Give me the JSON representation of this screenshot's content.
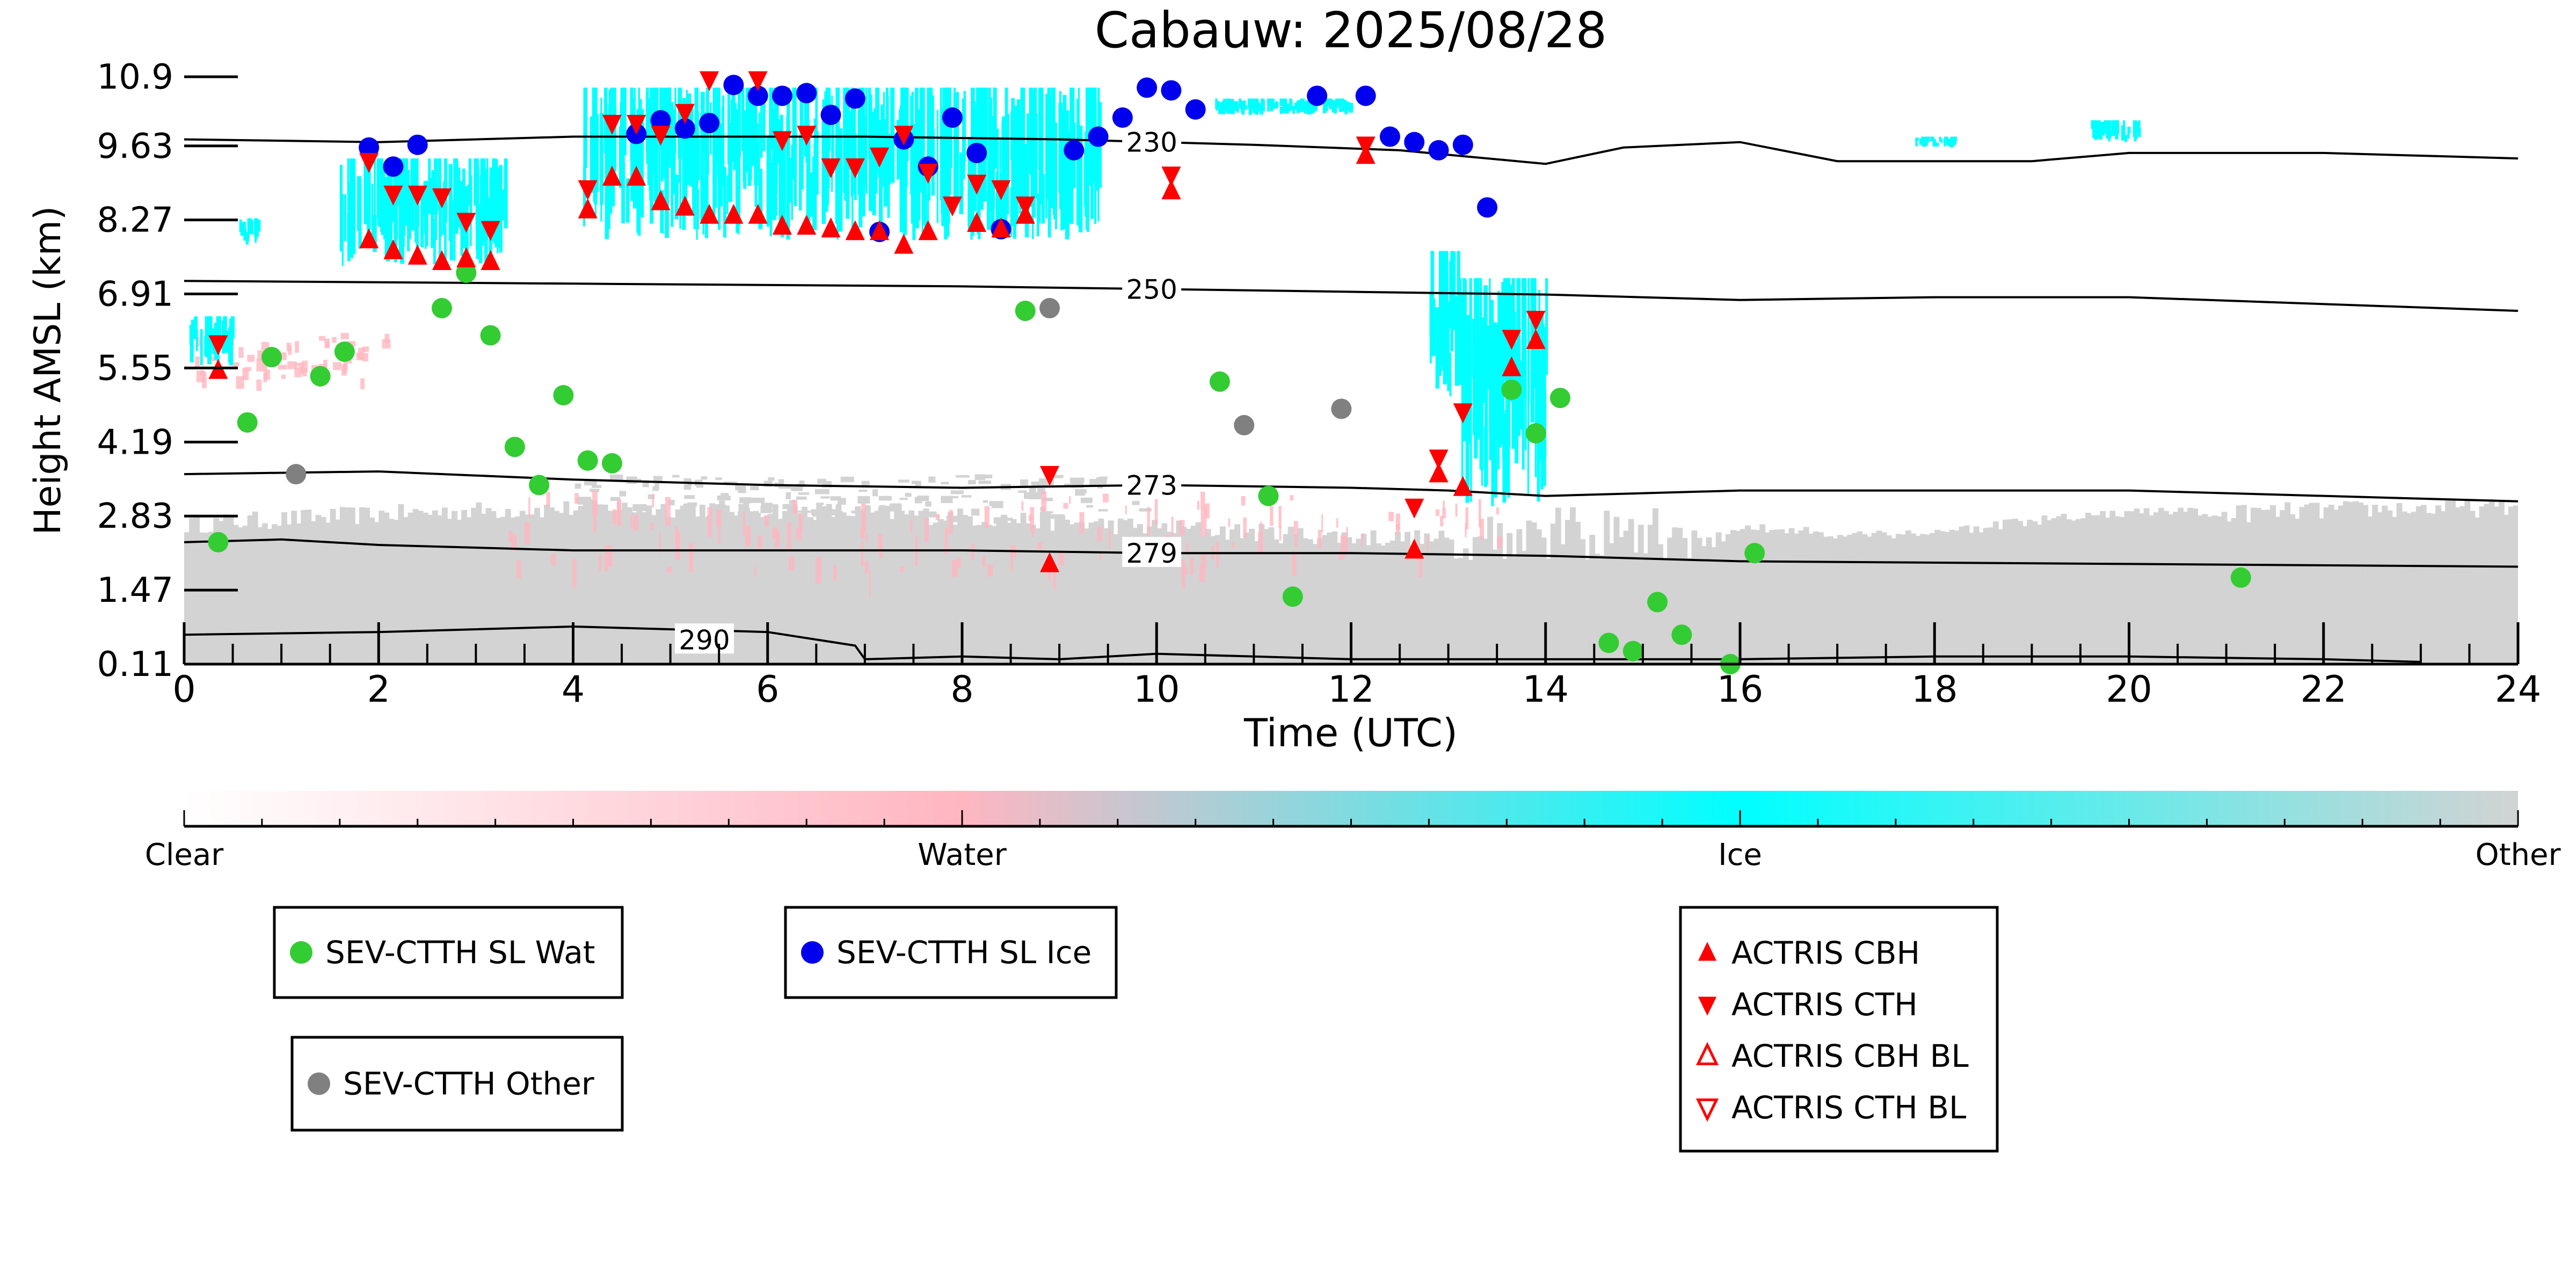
{
  "chart_data": {
    "type": "scatter",
    "title": "Cabauw: 2025/08/28",
    "xlabel": "Time (UTC)",
    "ylabel": "Height AMSL (km)",
    "xlim": [
      0,
      24
    ],
    "ylim": [
      0.11,
      10.9
    ],
    "x_ticks": [
      0,
      2,
      4,
      6,
      8,
      10,
      12,
      14,
      16,
      18,
      20,
      22,
      24
    ],
    "y_ticks": [
      "0.11",
      "1.47",
      "2.83",
      "4.19",
      "5.55",
      "6.91",
      "8.27",
      "9.63",
      "10.9"
    ],
    "background": "cloud classification image (Clear / Water / Ice / Other)",
    "colorbar": {
      "labels": [
        "Clear",
        "Water",
        "Ice",
        "Other"
      ],
      "colors": [
        "#ffffff",
        "#ffb6c1",
        "#00ffff",
        "#d3d3d3"
      ]
    },
    "contours": [
      {
        "label": "230",
        "points": [
          [
            0,
            9.75
          ],
          [
            2,
            9.7
          ],
          [
            4,
            9.8
          ],
          [
            7,
            9.8
          ],
          [
            9,
            9.75
          ],
          [
            11,
            9.65
          ],
          [
            12.5,
            9.55
          ],
          [
            14,
            9.3
          ],
          [
            14.8,
            9.6
          ],
          [
            16,
            9.7
          ],
          [
            17,
            9.35
          ],
          [
            19,
            9.35
          ],
          [
            20,
            9.5
          ],
          [
            22,
            9.5
          ],
          [
            24,
            9.4
          ]
        ]
      },
      {
        "label": "250",
        "points": [
          [
            0,
            7.15
          ],
          [
            4,
            7.1
          ],
          [
            8,
            7.05
          ],
          [
            10,
            7.0
          ],
          [
            12,
            6.95
          ],
          [
            14,
            6.9
          ],
          [
            16,
            6.8
          ],
          [
            18,
            6.85
          ],
          [
            20,
            6.85
          ],
          [
            24,
            6.6
          ]
        ]
      },
      {
        "label": "273",
        "points": [
          [
            0,
            3.6
          ],
          [
            2,
            3.65
          ],
          [
            4,
            3.5
          ],
          [
            6,
            3.4
          ],
          [
            8,
            3.35
          ],
          [
            10,
            3.4
          ],
          [
            12,
            3.35
          ],
          [
            13,
            3.3
          ],
          [
            14,
            3.2
          ],
          [
            16,
            3.3
          ],
          [
            20,
            3.3
          ],
          [
            24,
            3.1
          ]
        ]
      },
      {
        "label": "279",
        "points": [
          [
            0,
            2.35
          ],
          [
            1,
            2.4
          ],
          [
            2,
            2.3
          ],
          [
            4,
            2.2
          ],
          [
            6,
            2.2
          ],
          [
            8,
            2.2
          ],
          [
            10,
            2.15
          ],
          [
            12,
            2.15
          ],
          [
            14,
            2.1
          ],
          [
            16,
            2.0
          ],
          [
            20,
            1.95
          ],
          [
            24,
            1.9
          ]
        ]
      },
      {
        "label": "290",
        "points": [
          [
            0,
            0.65
          ],
          [
            2,
            0.7
          ],
          [
            4,
            0.8
          ],
          [
            6,
            0.7
          ],
          [
            6.9,
            0.45
          ],
          [
            7,
            0.2
          ],
          [
            8,
            0.25
          ],
          [
            9,
            0.2
          ],
          [
            10,
            0.3
          ],
          [
            11,
            0.25
          ],
          [
            12,
            0.2
          ],
          [
            14,
            0.2
          ],
          [
            16,
            0.2
          ],
          [
            18,
            0.25
          ],
          [
            20,
            0.25
          ],
          [
            22,
            0.2
          ],
          [
            23,
            0.15
          ]
        ]
      }
    ],
    "series": [
      {
        "name": "SEV-CTTH SL Wat",
        "color": "#33cc33",
        "marker": "circle",
        "points": [
          [
            0.35,
            2.35
          ],
          [
            0.65,
            4.55
          ],
          [
            0.9,
            5.75
          ],
          [
            1.4,
            5.4
          ],
          [
            1.65,
            5.85
          ],
          [
            2.65,
            6.65
          ],
          [
            2.9,
            7.3
          ],
          [
            3.15,
            6.15
          ],
          [
            3.4,
            4.1
          ],
          [
            3.65,
            3.4
          ],
          [
            3.9,
            5.05
          ],
          [
            4.15,
            3.85
          ],
          [
            4.4,
            3.8
          ],
          [
            8.65,
            6.6
          ],
          [
            10.65,
            5.3
          ],
          [
            11.15,
            3.2
          ],
          [
            11.4,
            1.35
          ],
          [
            13.65,
            5.15
          ],
          [
            13.9,
            4.35
          ],
          [
            14.15,
            5.0
          ],
          [
            14.65,
            0.5
          ],
          [
            14.9,
            0.35
          ],
          [
            15.15,
            1.25
          ],
          [
            15.4,
            0.65
          ],
          [
            15.9,
            0.11
          ],
          [
            16.15,
            2.15
          ],
          [
            21.15,
            1.7
          ]
        ]
      },
      {
        "name": "SEV-CTTH SL Ice",
        "color": "#0000ee",
        "marker": "circle",
        "points": [
          [
            1.9,
            9.6
          ],
          [
            2.15,
            9.25
          ],
          [
            2.4,
            9.65
          ],
          [
            4.65,
            9.85
          ],
          [
            4.9,
            10.1
          ],
          [
            5.15,
            9.95
          ],
          [
            5.4,
            10.05
          ],
          [
            5.65,
            10.75
          ],
          [
            5.9,
            10.55
          ],
          [
            6.15,
            10.55
          ],
          [
            6.4,
            10.6
          ],
          [
            6.65,
            10.2
          ],
          [
            6.9,
            10.5
          ],
          [
            7.15,
            8.05
          ],
          [
            7.4,
            9.75
          ],
          [
            7.65,
            9.25
          ],
          [
            7.9,
            10.15
          ],
          [
            8.15,
            9.5
          ],
          [
            8.4,
            8.1
          ],
          [
            9.15,
            9.55
          ],
          [
            9.4,
            9.8
          ],
          [
            9.65,
            10.15
          ],
          [
            9.9,
            10.7
          ],
          [
            10.15,
            10.65
          ],
          [
            10.4,
            10.3
          ],
          [
            11.65,
            10.55
          ],
          [
            12.15,
            10.55
          ],
          [
            12.4,
            9.8
          ],
          [
            12.65,
            9.7
          ],
          [
            12.9,
            9.55
          ],
          [
            13.15,
            9.65
          ],
          [
            13.4,
            8.5
          ]
        ]
      },
      {
        "name": "SEV-CTTH Other",
        "color": "#808080",
        "marker": "circle",
        "points": [
          [
            1.15,
            3.6
          ],
          [
            8.9,
            6.65
          ],
          [
            10.9,
            4.5
          ],
          [
            11.9,
            4.8
          ]
        ]
      },
      {
        "name": "ACTRIS CBH",
        "color": "#ff0000",
        "marker": "triangle-up",
        "points": [
          [
            0.35,
            5.5
          ],
          [
            1.9,
            7.9
          ],
          [
            2.15,
            7.7
          ],
          [
            2.4,
            7.6
          ],
          [
            2.65,
            7.5
          ],
          [
            2.9,
            7.55
          ],
          [
            3.15,
            7.5
          ],
          [
            4.15,
            8.45
          ],
          [
            4.4,
            9.05
          ],
          [
            4.65,
            9.05
          ],
          [
            4.9,
            8.6
          ],
          [
            5.15,
            8.5
          ],
          [
            5.4,
            8.35
          ],
          [
            5.65,
            8.35
          ],
          [
            5.9,
            8.35
          ],
          [
            6.15,
            8.15
          ],
          [
            6.4,
            8.15
          ],
          [
            6.65,
            8.1
          ],
          [
            6.9,
            8.05
          ],
          [
            7.15,
            8.05
          ],
          [
            7.4,
            7.8
          ],
          [
            7.65,
            8.05
          ],
          [
            8.15,
            8.2
          ],
          [
            8.4,
            8.1
          ],
          [
            8.65,
            8.35
          ],
          [
            8.9,
            1.95
          ],
          [
            10.15,
            8.8
          ],
          [
            12.15,
            9.45
          ],
          [
            12.65,
            2.2
          ],
          [
            12.9,
            3.6
          ],
          [
            13.15,
            3.35
          ],
          [
            13.65,
            5.55
          ],
          [
            13.9,
            6.05
          ]
        ]
      },
      {
        "name": "ACTRIS CTH",
        "color": "#ff0000",
        "marker": "triangle-down",
        "points": [
          [
            0.35,
            6.0
          ],
          [
            1.9,
            9.35
          ],
          [
            2.15,
            8.75
          ],
          [
            2.4,
            8.75
          ],
          [
            2.65,
            8.7
          ],
          [
            2.9,
            8.25
          ],
          [
            3.15,
            8.1
          ],
          [
            4.15,
            8.85
          ],
          [
            4.4,
            10.05
          ],
          [
            4.65,
            10.05
          ],
          [
            4.9,
            9.85
          ],
          [
            5.15,
            10.25
          ],
          [
            5.4,
            10.85
          ],
          [
            5.9,
            10.85
          ],
          [
            6.15,
            9.75
          ],
          [
            6.4,
            9.85
          ],
          [
            6.65,
            9.25
          ],
          [
            6.9,
            9.25
          ],
          [
            7.15,
            9.45
          ],
          [
            7.4,
            9.85
          ],
          [
            7.65,
            9.15
          ],
          [
            7.9,
            8.55
          ],
          [
            8.15,
            8.95
          ],
          [
            8.4,
            8.85
          ],
          [
            8.65,
            8.55
          ],
          [
            8.9,
            3.6
          ],
          [
            10.15,
            9.1
          ],
          [
            12.15,
            9.65
          ],
          [
            12.65,
            3.0
          ],
          [
            12.9,
            3.9
          ],
          [
            13.15,
            4.75
          ],
          [
            13.65,
            6.1
          ],
          [
            13.9,
            6.45
          ]
        ]
      },
      {
        "name": "ACTRIS CBH BL",
        "color": "#ff0000",
        "marker": "triangle-up-open",
        "points": []
      },
      {
        "name": "ACTRIS CTH BL",
        "color": "#ff0000",
        "marker": "triangle-down-open",
        "points": []
      }
    ]
  }
}
